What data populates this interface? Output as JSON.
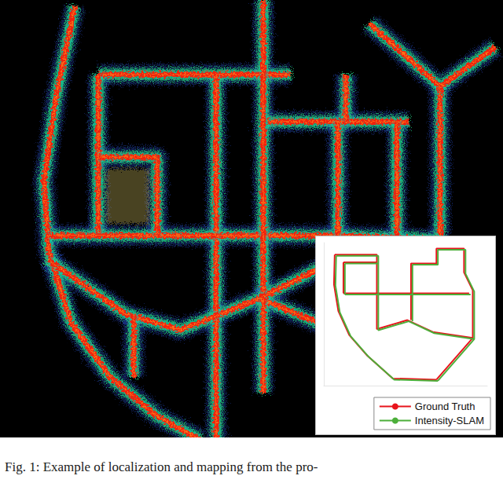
{
  "caption": "Fig. 1: Example of localization and mapping from the pro-",
  "chart_data": {
    "type": "line",
    "xlim": [
      0,
      225
    ],
    "ylim": [
      0,
      240
    ],
    "tick_labels": false,
    "grid": false,
    "legend": "lower right",
    "series": [
      {
        "name": "Ground Truth",
        "color": "#e8141c",
        "values": [
          [
            15,
            220
          ],
          [
            73,
            220
          ],
          [
            73,
            155
          ],
          null,
          [
            27,
            207
          ],
          [
            73,
            207
          ],
          null,
          [
            27,
            207
          ],
          [
            27,
            155
          ],
          null,
          [
            27,
            155
          ],
          [
            200,
            155
          ],
          null,
          [
            120,
            155
          ],
          [
            120,
            205
          ],
          [
            155,
            205
          ],
          [
            155,
            230
          ],
          [
            193,
            230
          ],
          [
            193,
            190
          ],
          [
            205,
            160
          ],
          [
            205,
            80
          ],
          [
            155,
            10
          ],
          null,
          [
            73,
            155
          ],
          [
            73,
            95
          ],
          [
            115,
            110
          ],
          [
            150,
            90
          ],
          [
            205,
            80
          ],
          null,
          [
            120,
            155
          ],
          [
            120,
            110
          ],
          null,
          [
            15,
            220
          ],
          [
            14,
            170
          ],
          [
            20,
            125
          ],
          [
            35,
            85
          ],
          [
            60,
            50
          ],
          [
            95,
            12
          ],
          [
            155,
            10
          ]
        ]
      },
      {
        "name": "Intensity-SLAM",
        "color": "#4caf3a",
        "values": [
          [
            17,
            218
          ],
          [
            75,
            218
          ],
          [
            75,
            153
          ],
          null,
          [
            29,
            205
          ],
          [
            75,
            205
          ],
          null,
          [
            29,
            205
          ],
          [
            29,
            153
          ],
          null,
          [
            29,
            153
          ],
          [
            202,
            153
          ],
          null,
          [
            122,
            153
          ],
          [
            122,
            203
          ],
          [
            157,
            203
          ],
          [
            157,
            228
          ],
          [
            195,
            228
          ],
          [
            195,
            188
          ],
          [
            207,
            158
          ],
          [
            207,
            78
          ],
          [
            157,
            8
          ],
          null,
          [
            75,
            153
          ],
          [
            75,
            93
          ],
          [
            117,
            108
          ],
          [
            152,
            88
          ],
          [
            207,
            78
          ],
          null,
          [
            122,
            153
          ],
          [
            122,
            108
          ],
          null,
          [
            17,
            218
          ],
          [
            16,
            168
          ],
          [
            22,
            123
          ],
          [
            37,
            83
          ],
          [
            62,
            48
          ],
          [
            97,
            10
          ],
          [
            157,
            8
          ]
        ]
      }
    ]
  }
}
